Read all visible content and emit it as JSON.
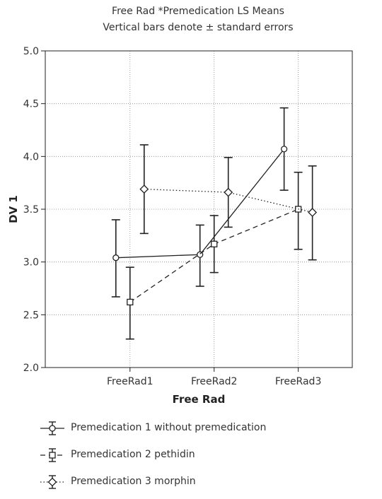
{
  "chart_data": {
    "type": "line",
    "title": "Free Rad *Premedication LS Means",
    "subtitle": "Vertical bars denote ± standard errors",
    "xlabel": "Free Rad",
    "ylabel": "DV 1",
    "categories": [
      "FreeRad1",
      "FreeRad2",
      "FreeRad3"
    ],
    "ylim": [
      2.0,
      5.0
    ],
    "yticks": [
      "2.0",
      "2.5",
      "3.0",
      "3.5",
      "4.0",
      "4.5",
      "5.0"
    ],
    "grid": true,
    "legend_position": "bottom",
    "series": [
      {
        "name": "Premedication 1 without premedication",
        "marker": "circle",
        "line": "solid",
        "values": [
          3.04,
          3.07,
          4.07
        ],
        "lower": [
          2.67,
          2.77,
          3.68
        ],
        "upper": [
          3.4,
          3.35,
          4.46
        ]
      },
      {
        "name": "Premedication 2 pethidin",
        "marker": "square",
        "line": "dashed",
        "values": [
          2.62,
          3.17,
          3.5
        ],
        "lower": [
          2.27,
          2.9,
          3.12
        ],
        "upper": [
          2.95,
          3.44,
          3.85
        ]
      },
      {
        "name": "Premedication 3 morphin",
        "marker": "diamond",
        "line": "dotted",
        "values": [
          3.69,
          3.66,
          3.47
        ],
        "lower": [
          3.27,
          3.33,
          3.02
        ],
        "upper": [
          4.11,
          3.99,
          3.91
        ]
      }
    ]
  }
}
